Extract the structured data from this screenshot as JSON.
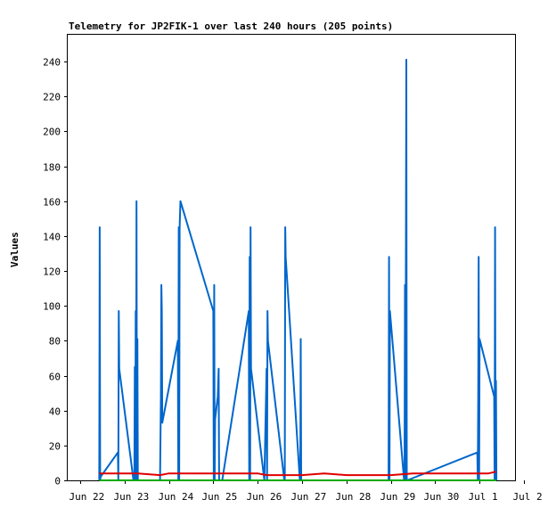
{
  "chart_data": {
    "type": "line",
    "title": "Telemetry for JP2FIK-1 over last 240 hours (205 points)",
    "xlabel": "",
    "ylabel": "Values",
    "ylim": [
      0,
      255
    ],
    "yticks": [
      0,
      20,
      40,
      60,
      80,
      100,
      120,
      140,
      160,
      180,
      200,
      220,
      240
    ],
    "xlim": [
      0,
      10
    ],
    "xticks": [
      {
        "x": 0,
        "label": "Jun 22"
      },
      {
        "x": 1,
        "label": "Jun 23"
      },
      {
        "x": 2,
        "label": "Jun 24"
      },
      {
        "x": 3,
        "label": "Jun 25"
      },
      {
        "x": 4,
        "label": "Jun 26"
      },
      {
        "x": 5,
        "label": "Jun 27"
      },
      {
        "x": 6,
        "label": "Jun 28"
      },
      {
        "x": 7,
        "label": "Jun 29"
      },
      {
        "x": 8,
        "label": "Jun 30"
      },
      {
        "x": 9,
        "label": "Jul 1"
      },
      {
        "x": 10,
        "label": "Jul 2"
      }
    ],
    "grid": false,
    "series": [
      {
        "color": "#0066cc",
        "points": [
          [
            0.43,
            0
          ],
          [
            0.44,
            145
          ],
          [
            0.45,
            0
          ],
          [
            0.46,
            2
          ],
          [
            0.85,
            16
          ],
          [
            0.86,
            0
          ],
          [
            0.87,
            97
          ],
          [
            0.88,
            64
          ],
          [
            0.89,
            62
          ],
          [
            1.2,
            0
          ],
          [
            1.21,
            2
          ],
          [
            1.22,
            0
          ],
          [
            1.23,
            65
          ],
          [
            1.24,
            0
          ],
          [
            1.25,
            97
          ],
          [
            1.26,
            0
          ],
          [
            1.27,
            160
          ],
          [
            1.28,
            0
          ],
          [
            1.29,
            81
          ],
          [
            1.3,
            0
          ],
          [
            1.8,
            0
          ],
          [
            1.82,
            48
          ],
          [
            1.83,
            112
          ],
          [
            1.84,
            97
          ],
          [
            1.85,
            33
          ],
          [
            2.2,
            80
          ],
          [
            2.21,
            0
          ],
          [
            2.22,
            145
          ],
          [
            2.23,
            0
          ],
          [
            2.24,
            145
          ],
          [
            2.26,
            160
          ],
          [
            3.0,
            97
          ],
          [
            3.01,
            0
          ],
          [
            3.02,
            112
          ],
          [
            3.03,
            0
          ],
          [
            3.04,
            35
          ],
          [
            3.1,
            48
          ],
          [
            3.12,
            64
          ],
          [
            3.13,
            0
          ],
          [
            3.15,
            0
          ],
          [
            3.2,
            0
          ],
          [
            3.8,
            97
          ],
          [
            3.81,
            0
          ],
          [
            3.82,
            128
          ],
          [
            3.83,
            0
          ],
          [
            3.84,
            145
          ],
          [
            3.85,
            64
          ],
          [
            3.86,
            62
          ],
          [
            4.15,
            0
          ],
          [
            4.2,
            64
          ],
          [
            4.21,
            0
          ],
          [
            4.22,
            97
          ],
          [
            4.23,
            80
          ],
          [
            4.6,
            0
          ],
          [
            4.61,
            0
          ],
          [
            4.62,
            145
          ],
          [
            4.63,
            128
          ],
          [
            4.95,
            0
          ],
          [
            4.96,
            0
          ],
          [
            4.97,
            81
          ],
          [
            4.98,
            0
          ],
          [
            6.95,
            0
          ],
          [
            6.96,
            128
          ],
          [
            6.97,
            0
          ],
          [
            6.98,
            97
          ],
          [
            7.3,
            0
          ],
          [
            7.31,
            0
          ],
          [
            7.32,
            112
          ],
          [
            7.33,
            0
          ],
          [
            7.35,
            241
          ],
          [
            7.36,
            0
          ],
          [
            7.37,
            0
          ],
          [
            8.95,
            16
          ],
          [
            8.96,
            0
          ],
          [
            8.97,
            48
          ],
          [
            8.98,
            128
          ],
          [
            8.99,
            0
          ],
          [
            9.0,
            81
          ],
          [
            9.33,
            48
          ],
          [
            9.34,
            0
          ],
          [
            9.35,
            145
          ],
          [
            9.36,
            0
          ],
          [
            9.37,
            57
          ],
          [
            9.38,
            0
          ]
        ]
      },
      {
        "color": "#e00000",
        "points": [
          [
            0.43,
            4
          ],
          [
            1.0,
            4
          ],
          [
            1.3,
            4
          ],
          [
            1.8,
            3
          ],
          [
            2.0,
            4
          ],
          [
            3.0,
            4
          ],
          [
            4.0,
            4
          ],
          [
            4.2,
            3
          ],
          [
            5.0,
            3
          ],
          [
            5.5,
            4
          ],
          [
            6.0,
            3
          ],
          [
            6.5,
            3
          ],
          [
            7.0,
            3
          ],
          [
            7.5,
            4
          ],
          [
            8.0,
            4
          ],
          [
            9.0,
            4
          ],
          [
            9.2,
            4
          ],
          [
            9.38,
            5
          ]
        ]
      },
      {
        "color": "#00aa00",
        "points": [
          [
            0.43,
            0
          ],
          [
            9.38,
            0
          ]
        ]
      }
    ]
  }
}
